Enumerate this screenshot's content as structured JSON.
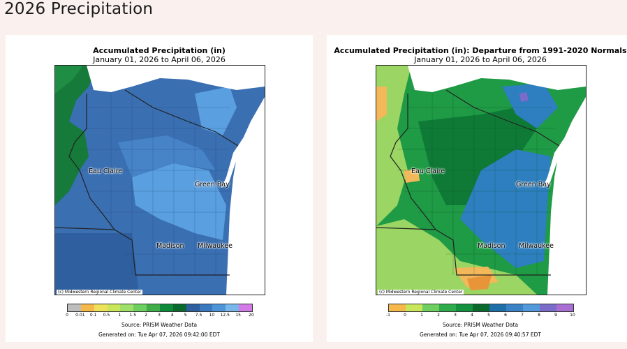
{
  "page": {
    "title": "2026 Precipitation"
  },
  "maps": [
    {
      "title": "Accumulated Precipitation (in)",
      "subtitle": "January 01, 2026 to April 06, 2026",
      "credit": "(c) Midwestern Regional Climate Center",
      "source": "Source: PRISM Weather Data",
      "generated": "Generated on: Tue Apr 07, 2026 09:42:00 EDT",
      "cities": [
        "Eau Claire",
        "Green Bay",
        "Madison",
        "Milwaukee"
      ],
      "legend": {
        "ticks": [
          "0",
          "0.01",
          "0.1",
          "0.5",
          "1",
          "1.5",
          "2",
          "3",
          "4",
          "5",
          "7.5",
          "10",
          "12.5",
          "15",
          "20"
        ],
        "colors": [
          "#bdbdbd",
          "#f6b84a",
          "#ede35a",
          "#c9e65b",
          "#9ee06a",
          "#6ccf5f",
          "#3fae4a",
          "#0e8b3a",
          "#0a6a2e",
          "#2f5f9f",
          "#3a78c0",
          "#4f94d8",
          "#79b6ea",
          "#d27ae6"
        ]
      },
      "palette": {
        "base": "#3a6fb2",
        "dark": "#2f5f9f",
        "mid": "#4683c7",
        "light": "#5a9fe0",
        "green": "#157a3a",
        "lake": "#ffffff",
        "border": "#222222"
      }
    },
    {
      "title": "Accumulated Precipitation (in): Departure from 1991-2020 Normals",
      "subtitle": "January 01, 2026 to April 06, 2026",
      "credit": "(c) Midwestern Regional Climate Center",
      "source": "Source: PRISM Weather Data",
      "generated": "Generated on: Tue Apr 07, 2026 09:40:57 EDT",
      "cities": [
        "Eau Claire",
        "Green Bay",
        "Madison",
        "Milwaukee"
      ],
      "legend": {
        "ticks": [
          "-1",
          "0",
          "1",
          "2",
          "3",
          "4",
          "5",
          "6",
          "7",
          "8",
          "9",
          "10"
        ],
        "colors": [
          "#f6b84a",
          "#c9e65b",
          "#6ccf5f",
          "#2eab4a",
          "#13913f",
          "#0a6a2e",
          "#1e6fa8",
          "#3a82c6",
          "#5299dc",
          "#7a6cc8",
          "#a96ed2"
        ]
      },
      "palette": {
        "base": "#1f9a45",
        "dark": "#0e7a36",
        "mid": "#2d7fbf",
        "light": "#9bd563",
        "orange": "#f2b85a",
        "lake": "#ffffff",
        "border": "#222222"
      }
    }
  ]
}
